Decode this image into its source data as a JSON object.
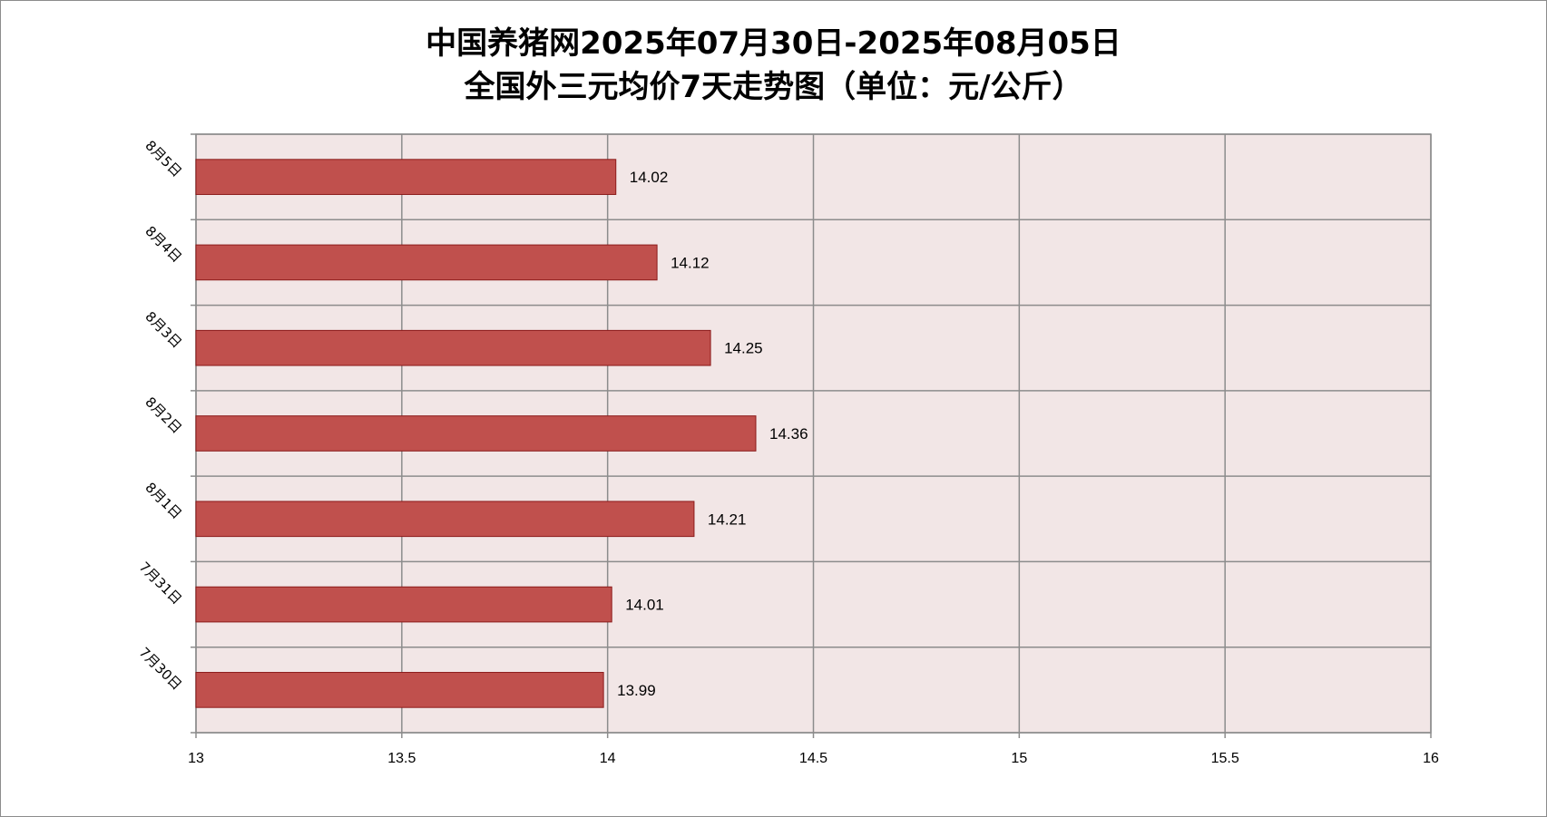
{
  "chart_data": {
    "type": "bar",
    "orientation": "horizontal",
    "title": "中国养猪网2025年07月30日-2025年08月05日",
    "subtitle": "全国外三元均价7天走势图（单位：元/公斤）",
    "categories": [
      "8月5日",
      "8月4日",
      "8月3日",
      "8月2日",
      "8月1日",
      "7月31日",
      "7月30日"
    ],
    "values": [
      14.02,
      14.12,
      14.25,
      14.36,
      14.21,
      14.01,
      13.99
    ],
    "data_labels": [
      "14.02",
      "14.12",
      "14.25",
      "14.36",
      "14.21",
      "14.01",
      "13.99"
    ],
    "xlim": [
      13,
      16
    ],
    "xticks": [
      13,
      13.5,
      14,
      14.5,
      15,
      15.5,
      16
    ],
    "xtick_labels": [
      "13",
      "13.5",
      "14",
      "14.5",
      "15",
      "15.5",
      "16"
    ],
    "xlabel": "",
    "ylabel": "",
    "grid": true,
    "legend": "none",
    "colors": {
      "bar_fill": "#c0504d",
      "bar_edge": "#8b1a1a",
      "plot_background": "#f2e6e6",
      "grid": "#8c8c8c"
    }
  }
}
